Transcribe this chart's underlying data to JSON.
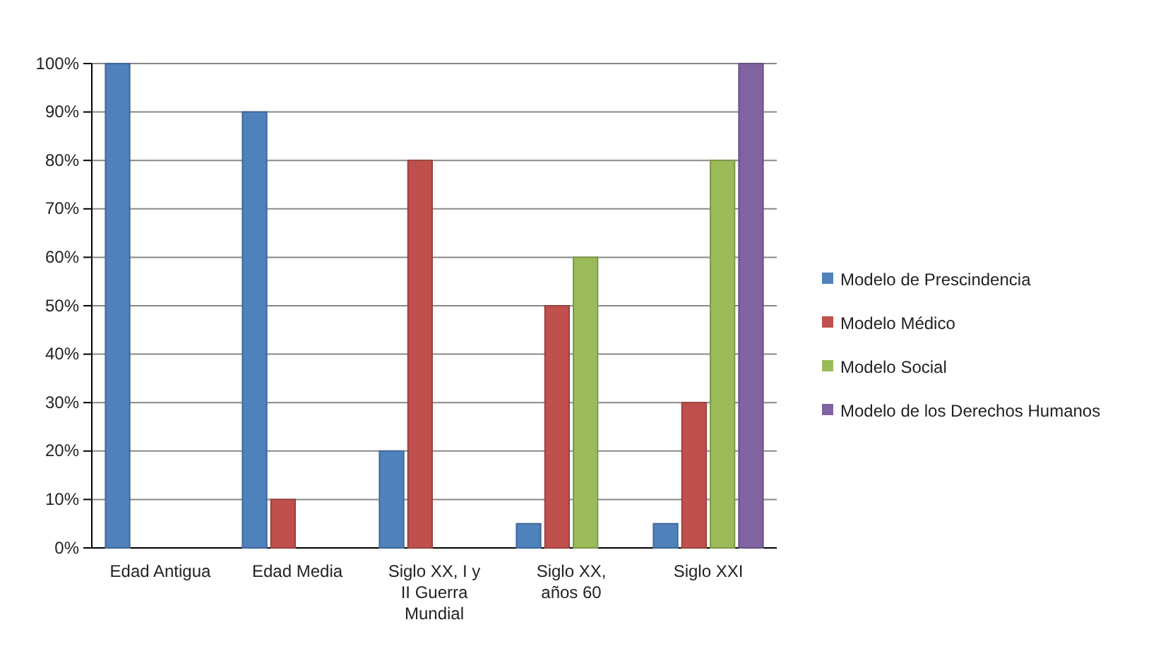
{
  "chart_data": {
    "type": "bar",
    "categories": [
      "Edad Antigua",
      "Edad Media",
      "Siglo XX, I y II Guerra Mundial",
      "Siglo XX, años 60",
      "Siglo XXI"
    ],
    "series": [
      {
        "name": "Modelo de Prescindencia",
        "color": "#4f81bd",
        "values": [
          100,
          90,
          20,
          5,
          5
        ]
      },
      {
        "name": "Modelo Médico",
        "color": "#c0504d",
        "values": [
          0,
          10,
          80,
          50,
          30
        ]
      },
      {
        "name": "Modelo Social",
        "color": "#9bbb59",
        "values": [
          0,
          0,
          0,
          60,
          80
        ]
      },
      {
        "name": "Modelo de los Derechos Humanos",
        "color": "#8064a2",
        "values": [
          0,
          0,
          0,
          0,
          100
        ]
      }
    ],
    "ylim": [
      0,
      100
    ],
    "yticks": [
      {
        "value": 0,
        "label": "0%"
      },
      {
        "value": 10,
        "label": "10%"
      },
      {
        "value": 20,
        "label": "20%"
      },
      {
        "value": 30,
        "label": "30%"
      },
      {
        "value": 40,
        "label": "40%"
      },
      {
        "value": 50,
        "label": "50%"
      },
      {
        "value": 60,
        "label": "60%"
      },
      {
        "value": 70,
        "label": "70%"
      },
      {
        "value": 80,
        "label": "80%"
      },
      {
        "value": 90,
        "label": "90%"
      },
      {
        "value": 100,
        "label": "100%"
      }
    ],
    "grid": "y",
    "legend": "right"
  }
}
